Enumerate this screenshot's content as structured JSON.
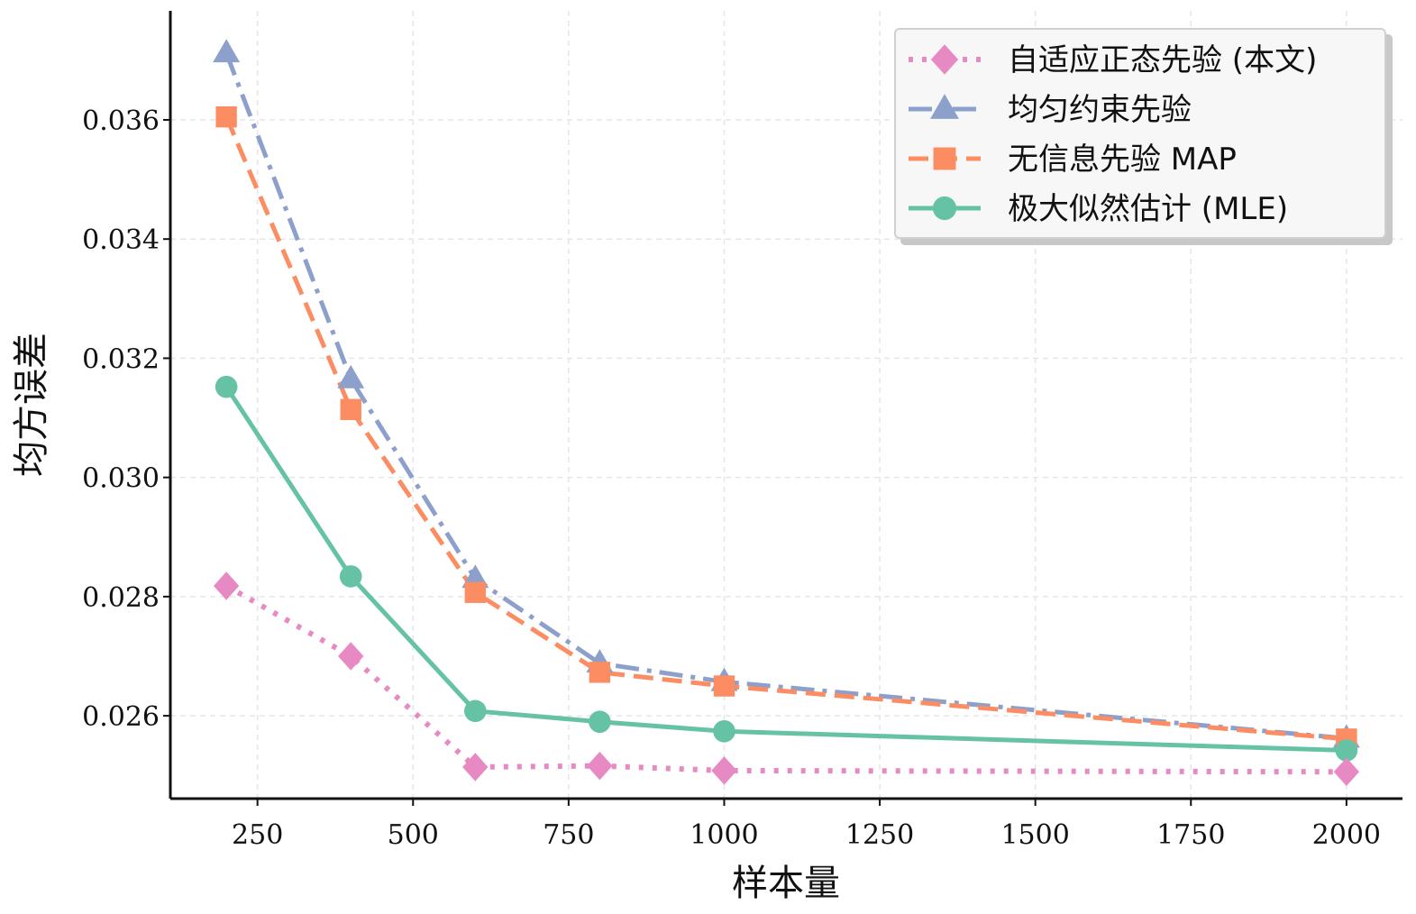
{
  "chart_data": {
    "type": "line",
    "title": "",
    "xlabel": "样本量",
    "ylabel": "均方误差",
    "x": [
      200,
      400,
      600,
      800,
      1000,
      2000
    ],
    "xticks": [
      250,
      500,
      750,
      1000,
      1250,
      1500,
      1750,
      2000
    ],
    "xtick_labels": [
      "250",
      "500",
      "750",
      "1000",
      "1250",
      "1500",
      "1750",
      "2000"
    ],
    "yticks": [
      0.026,
      0.028,
      0.03,
      0.032,
      0.034,
      0.036
    ],
    "ytick_labels": [
      "0.026",
      "0.028",
      "0.030",
      "0.032",
      "0.034",
      "0.036"
    ],
    "xlim": [
      110,
      2090
    ],
    "ylim": [
      0.02461,
      0.03783
    ],
    "grid": true,
    "legend_position": "top-right",
    "series": [
      {
        "name": "自适应正态先验 (本文)",
        "color": "#e78ac3",
        "marker": "diamond",
        "linestyle": "dotted",
        "values": [
          0.02818,
          0.027,
          0.02514,
          0.02516,
          0.02508,
          0.02506
        ]
      },
      {
        "name": "均匀约束先验",
        "color": "#8da0cb",
        "marker": "triangle",
        "linestyle": "dashdot",
        "values": [
          0.03712,
          0.03165,
          0.0283,
          0.02688,
          0.02657,
          0.02562
        ]
      },
      {
        "name": "无信息先验 MAP",
        "color": "#fc8d62",
        "marker": "square",
        "linestyle": "dashed",
        "values": [
          0.03605,
          0.03114,
          0.02807,
          0.02673,
          0.0265,
          0.02561
        ]
      },
      {
        "name": "极大似然估计 (MLE)",
        "color": "#66c2a5",
        "marker": "circle",
        "linestyle": "solid",
        "values": [
          0.03152,
          0.02834,
          0.02608,
          0.0259,
          0.02574,
          0.02542
        ]
      }
    ]
  }
}
